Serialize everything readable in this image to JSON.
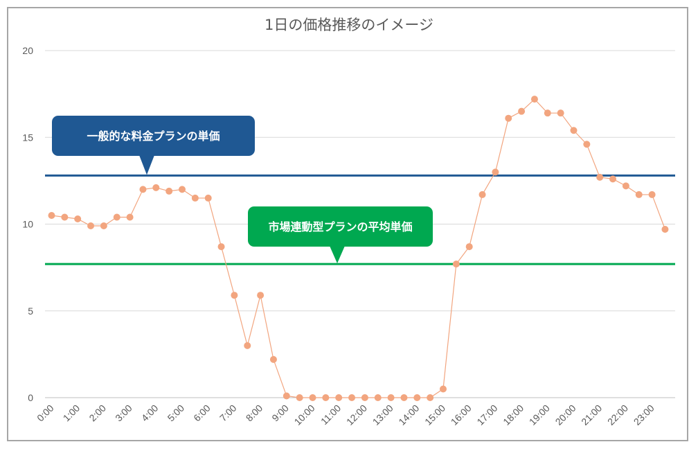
{
  "chart_data": {
    "type": "line",
    "title": "1日の価格推移のイメージ",
    "ylim": [
      0,
      20
    ],
    "yticks": [
      0,
      5,
      10,
      15,
      20
    ],
    "grid": true,
    "x_tick_labels": [
      "0:00",
      "1:00",
      "2:00",
      "3:00",
      "4:00",
      "5:00",
      "6:00",
      "7:00",
      "8:00",
      "9:00",
      "10:00",
      "11:00",
      "12:00",
      "13:00",
      "14:00",
      "15:00",
      "16:00",
      "17:00",
      "18:00",
      "19:00",
      "20:00",
      "21:00",
      "22:00",
      "23:00"
    ],
    "series": [
      {
        "values": [
          10.5,
          10.4,
          10.3,
          9.9,
          9.9,
          10.4,
          10.4,
          12.0,
          12.1,
          11.9,
          12.0,
          11.5,
          11.5,
          8.7,
          5.9,
          3.0,
          5.9,
          2.2,
          0.1,
          0.0,
          0.0,
          0.0,
          0.0,
          0.0,
          0.0,
          0.0,
          0.0,
          0.0,
          0.0,
          0.0,
          0.5,
          7.7,
          8.7,
          11.7,
          13.0,
          16.1,
          16.5,
          17.2,
          16.4,
          16.4,
          15.4,
          14.6,
          12.7,
          12.6,
          12.2,
          11.7,
          11.7,
          9.7
        ],
        "color": "#f2a57f"
      }
    ],
    "reference_lines": [
      {
        "label": "一般的な料金プランの単価",
        "value": 12.8,
        "color": "#1f5893"
      },
      {
        "label": "市場連動型プランの平均単価",
        "value": 7.7,
        "color": "#00a850"
      }
    ]
  }
}
